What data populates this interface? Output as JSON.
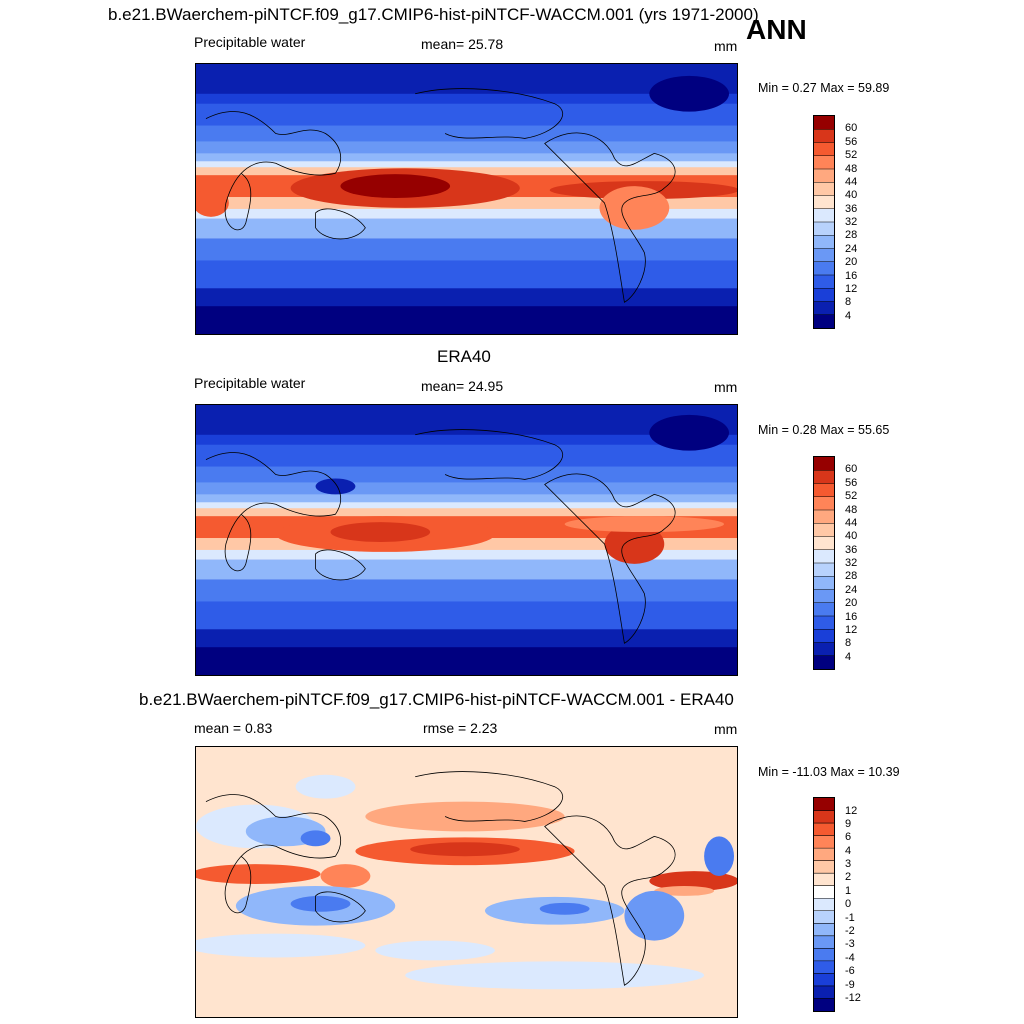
{
  "season": "ANN",
  "units": "mm",
  "panels": [
    {
      "title": "b.e21.BWaerchem-piNTCF.f09_g17.CMIP6-hist-piNTCF-WACCM.001 (yrs 1971-2000)",
      "left_label": "Precipitable water",
      "center_label": "mean=  25.78",
      "right_label": "mm",
      "minmax": "Min =   0.27 Max =  59.89",
      "colorbar_labels": [
        "60",
        "56",
        "52",
        "48",
        "44",
        "40",
        "36",
        "32",
        "28",
        "24",
        "20",
        "16",
        "12",
        "8",
        "4"
      ]
    },
    {
      "title": "ERA40",
      "left_label": "Precipitable water",
      "center_label": "mean=  24.95",
      "right_label": "mm",
      "minmax": "Min =   0.28 Max =  55.65",
      "colorbar_labels": [
        "60",
        "56",
        "52",
        "48",
        "44",
        "40",
        "36",
        "32",
        "28",
        "24",
        "20",
        "16",
        "12",
        "8",
        "4"
      ]
    },
    {
      "title": "b.e21.BWaerchem-piNTCF.f09_g17.CMIP6-hist-piNTCF-WACCM.001 - ERA40",
      "left_label": "mean =   0.83",
      "center_label": "rmse =   2.23",
      "right_label": "mm",
      "minmax": "Min = -11.03 Max =  10.39",
      "colorbar_labels": [
        "12",
        "9",
        "6",
        "4",
        "3",
        "2",
        "1",
        "0",
        "-1",
        "-2",
        "-3",
        "-4",
        "-6",
        "-9",
        "-12"
      ]
    }
  ],
  "colors": {
    "abs_scale": [
      "#000080",
      "#0a20b0",
      "#1a3fd8",
      "#2f5ce8",
      "#4a7bf0",
      "#6a98f5",
      "#90b7fa",
      "#b8d2fc",
      "#dbe9fe",
      "#ffe4cf",
      "#ffc8a6",
      "#ffa87f",
      "#ff8458",
      "#f55a30",
      "#d8361a",
      "#960000"
    ],
    "diff_scale": [
      "#000080",
      "#0a20b0",
      "#1a3fd8",
      "#2f5ce8",
      "#4a7bf0",
      "#6a98f5",
      "#90b7fa",
      "#b8d2fc",
      "#dbe9fe",
      "#ffffff",
      "#ffe4cf",
      "#ffc8a6",
      "#ffa87f",
      "#ff8458",
      "#f55a30",
      "#d8361a",
      "#960000"
    ]
  }
}
